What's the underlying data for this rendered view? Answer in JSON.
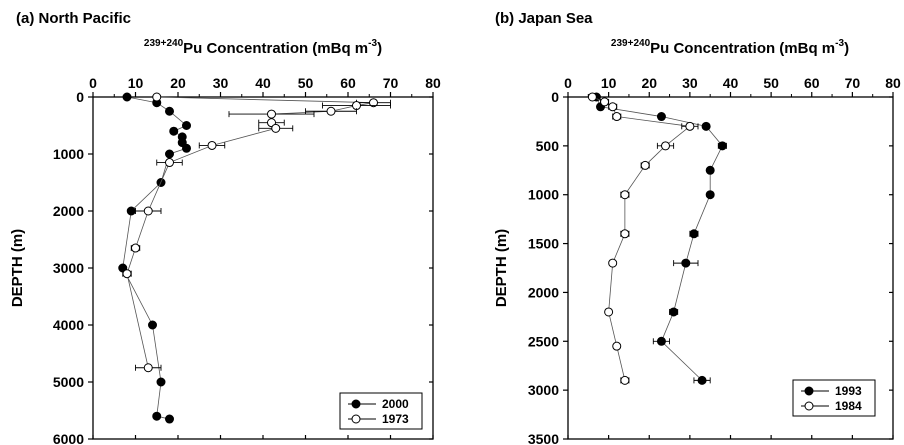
{
  "chart_data": [
    {
      "type": "scatter",
      "panel_label": "(a) North Pacific",
      "xlabel_main": "Pu Concentration (mBq m",
      "xlabel_sup": "239+240",
      "xlabel_unit_sup": "-3",
      "xlabel_close": ")",
      "ylabel": "DEPTH  (m)",
      "xlim": [
        0,
        80
      ],
      "ylim": [
        0,
        6000
      ],
      "x_ticks": [
        0,
        10,
        20,
        30,
        40,
        50,
        60,
        70,
        80
      ],
      "y_ticks": [
        0,
        1000,
        2000,
        3000,
        4000,
        5000,
        6000
      ],
      "x_axis_position": "top",
      "y_inverted": true,
      "legend_position": "bottom-right",
      "series": [
        {
          "name": "2000",
          "marker": "filled-circle",
          "connected": true,
          "points": [
            {
              "x": 8,
              "y": 0,
              "xerr": 0
            },
            {
              "x": 15,
              "y": 100,
              "xerr": 0
            },
            {
              "x": 18,
              "y": 250,
              "xerr": 0
            },
            {
              "x": 22,
              "y": 500,
              "xerr": 0
            },
            {
              "x": 19,
              "y": 600,
              "xerr": 0
            },
            {
              "x": 21,
              "y": 700,
              "xerr": 0
            },
            {
              "x": 21,
              "y": 800,
              "xerr": 0
            },
            {
              "x": 22,
              "y": 900,
              "xerr": 0
            },
            {
              "x": 18,
              "y": 1000,
              "xerr": 0
            },
            {
              "x": 16,
              "y": 1500,
              "xerr": 0
            },
            {
              "x": 9,
              "y": 2000,
              "xerr": 0
            },
            {
              "x": 7,
              "y": 3000,
              "xerr": 0
            },
            {
              "x": 14,
              "y": 4000,
              "xerr": 0
            },
            {
              "x": 16,
              "y": 5000,
              "xerr": 0
            },
            {
              "x": 15,
              "y": 5600,
              "xerr": 0
            },
            {
              "x": 18,
              "y": 5650,
              "xerr": 0
            }
          ]
        },
        {
          "name": "1973",
          "marker": "open-circle",
          "connected": true,
          "points": [
            {
              "x": 15,
              "y": 0,
              "xerr": 0
            },
            {
              "x": 66,
              "y": 100,
              "xerr": 4
            },
            {
              "x": 62,
              "y": 150,
              "xerr": 8
            },
            {
              "x": 56,
              "y": 250,
              "xerr": 6
            },
            {
              "x": 42,
              "y": 300,
              "xerr": 10
            },
            {
              "x": 42,
              "y": 450,
              "xerr": 3
            },
            {
              "x": 43,
              "y": 550,
              "xerr": 4
            },
            {
              "x": 28,
              "y": 850,
              "xerr": 3
            },
            {
              "x": 18,
              "y": 1150,
              "xerr": 3
            },
            {
              "x": 13,
              "y": 2000,
              "xerr": 3
            },
            {
              "x": 10,
              "y": 2650,
              "xerr": 1
            },
            {
              "x": 8,
              "y": 3100,
              "xerr": 1
            },
            {
              "x": 13,
              "y": 4750,
              "xerr": 3
            }
          ]
        }
      ]
    },
    {
      "type": "scatter",
      "panel_label": "(b) Japan Sea",
      "xlabel_main": "Pu Concentration (mBq m",
      "xlabel_sup": "239+240",
      "xlabel_unit_sup": "-3",
      "xlabel_close": ")",
      "ylabel": "DEPTH  (m)",
      "xlim": [
        0,
        80
      ],
      "ylim": [
        0,
        3500
      ],
      "x_ticks": [
        0,
        10,
        20,
        30,
        40,
        50,
        60,
        70,
        80
      ],
      "y_ticks": [
        0,
        500,
        1000,
        1500,
        2000,
        2500,
        3000,
        3500
      ],
      "x_axis_position": "top",
      "y_inverted": true,
      "legend_position": "bottom-right",
      "series": [
        {
          "name": "1993",
          "marker": "filled-circle",
          "connected": true,
          "points": [
            {
              "x": 7,
              "y": 0,
              "xerr": 0
            },
            {
              "x": 8,
              "y": 100,
              "xerr": 0
            },
            {
              "x": 23,
              "y": 200,
              "xerr": 0
            },
            {
              "x": 34,
              "y": 300,
              "xerr": 0
            },
            {
              "x": 38,
              "y": 500,
              "xerr": 1
            },
            {
              "x": 35,
              "y": 750,
              "xerr": 0
            },
            {
              "x": 35,
              "y": 1000,
              "xerr": 0
            },
            {
              "x": 31,
              "y": 1400,
              "xerr": 1
            },
            {
              "x": 29,
              "y": 1700,
              "xerr": 3
            },
            {
              "x": 26,
              "y": 2200,
              "xerr": 1
            },
            {
              "x": 23,
              "y": 2500,
              "xerr": 2
            },
            {
              "x": 33,
              "y": 2900,
              "xerr": 2
            }
          ]
        },
        {
          "name": "1984",
          "marker": "open-circle",
          "connected": true,
          "points": [
            {
              "x": 6,
              "y": 0,
              "xerr": 0
            },
            {
              "x": 9,
              "y": 50,
              "xerr": 1
            },
            {
              "x": 11,
              "y": 100,
              "xerr": 1
            },
            {
              "x": 12,
              "y": 200,
              "xerr": 1
            },
            {
              "x": 30,
              "y": 300,
              "xerr": 2
            },
            {
              "x": 24,
              "y": 500,
              "xerr": 2
            },
            {
              "x": 19,
              "y": 700,
              "xerr": 1
            },
            {
              "x": 14,
              "y": 1000,
              "xerr": 1
            },
            {
              "x": 14,
              "y": 1400,
              "xerr": 1
            },
            {
              "x": 11,
              "y": 1700,
              "xerr": 0
            },
            {
              "x": 10,
              "y": 2200,
              "xerr": 0
            },
            {
              "x": 12,
              "y": 2550,
              "xerr": 0
            },
            {
              "x": 14,
              "y": 2900,
              "xerr": 1
            }
          ]
        }
      ]
    }
  ]
}
